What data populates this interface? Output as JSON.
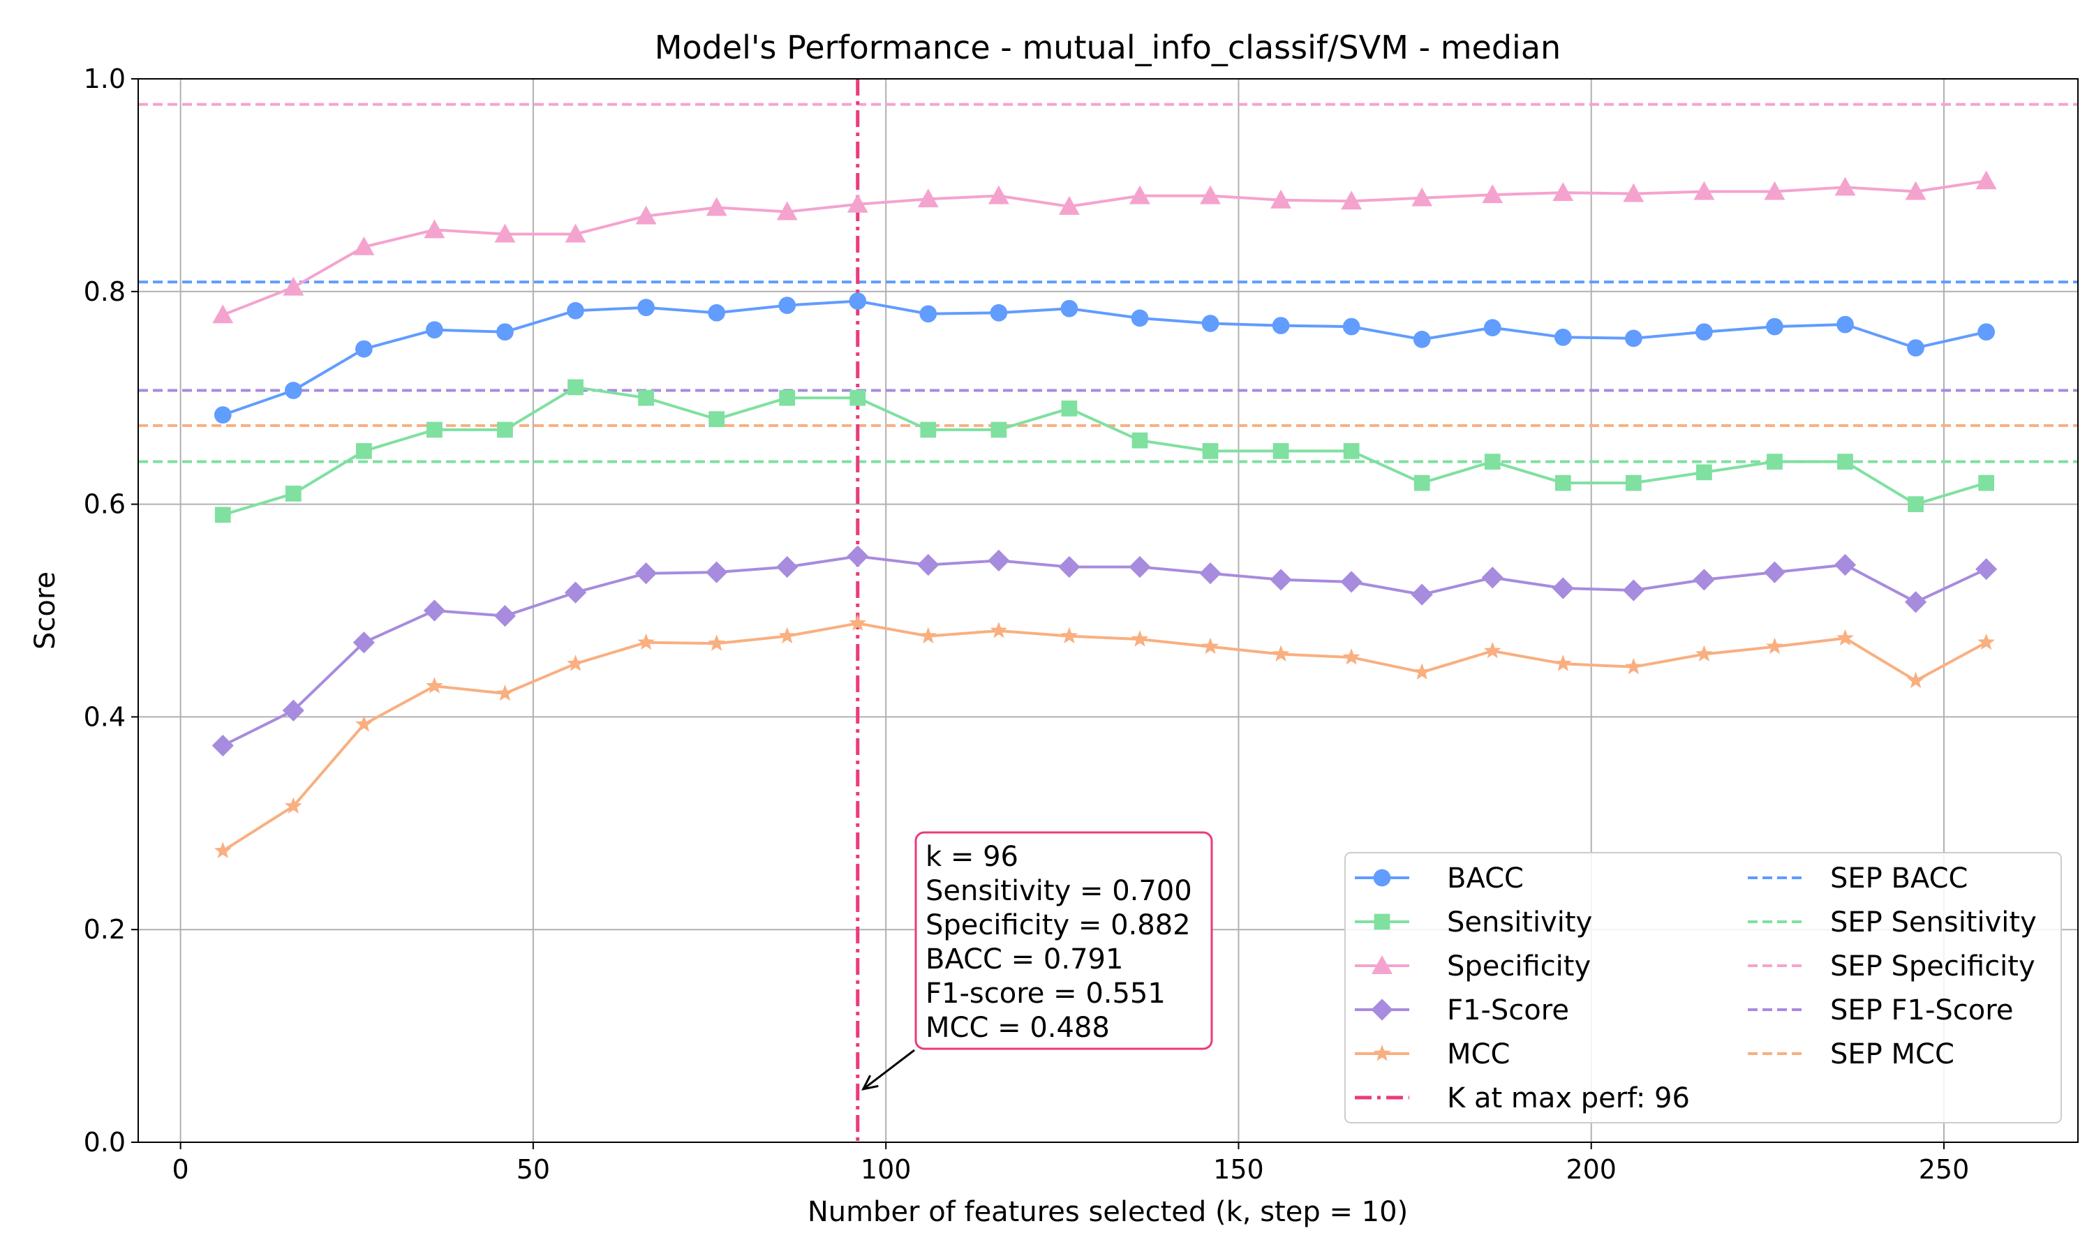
{
  "chart_data": {
    "type": "line",
    "title": "Model's Performance - mutual_info_classif/SVM - median",
    "xlabel": "Number of features selected (k, step = 10)",
    "ylabel": "Score",
    "xlim": [
      -6,
      269
    ],
    "ylim": [
      0.0,
      1.0
    ],
    "xticks": [
      0,
      50,
      100,
      150,
      200,
      250
    ],
    "yticks": [
      0.0,
      0.2,
      0.4,
      0.6,
      0.8,
      1.0
    ],
    "grid": true,
    "legend_position": "lower-right",
    "x": [
      6,
      16,
      26,
      36,
      46,
      56,
      66,
      76,
      86,
      96,
      106,
      116,
      126,
      136,
      146,
      156,
      166,
      176,
      186,
      196,
      206,
      216,
      226,
      236,
      246,
      256
    ],
    "series": [
      {
        "name": "BACC",
        "color": "#619CFF",
        "marker": "circle",
        "values": [
          0.684,
          0.707,
          0.746,
          0.764,
          0.762,
          0.782,
          0.785,
          0.78,
          0.787,
          0.791,
          0.779,
          0.78,
          0.784,
          0.775,
          0.77,
          0.768,
          0.767,
          0.755,
          0.766,
          0.757,
          0.756,
          0.762,
          0.767,
          0.769,
          0.747,
          0.762
        ]
      },
      {
        "name": "Sensitivity",
        "color": "#7FE0A0",
        "marker": "square",
        "values": [
          0.59,
          0.61,
          0.65,
          0.67,
          0.67,
          0.71,
          0.7,
          0.68,
          0.7,
          0.7,
          0.67,
          0.67,
          0.69,
          0.66,
          0.65,
          0.65,
          0.65,
          0.62,
          0.64,
          0.62,
          0.62,
          0.63,
          0.64,
          0.64,
          0.6,
          0.62
        ]
      },
      {
        "name": "Specificity",
        "color": "#F4A3CE",
        "marker": "triangle",
        "values": [
          0.778,
          0.804,
          0.842,
          0.858,
          0.854,
          0.854,
          0.871,
          0.879,
          0.875,
          0.882,
          0.887,
          0.89,
          0.88,
          0.89,
          0.89,
          0.886,
          0.885,
          0.888,
          0.891,
          0.893,
          0.892,
          0.894,
          0.894,
          0.898,
          0.894,
          0.904
        ]
      },
      {
        "name": "F1-Score",
        "color": "#A78BDE",
        "marker": "diamond",
        "values": [
          0.373,
          0.406,
          0.47,
          0.5,
          0.495,
          0.517,
          0.535,
          0.536,
          0.541,
          0.551,
          0.543,
          0.547,
          0.541,
          0.541,
          0.535,
          0.529,
          0.527,
          0.515,
          0.531,
          0.521,
          0.519,
          0.529,
          0.536,
          0.543,
          0.508,
          0.539
        ]
      },
      {
        "name": "MCC",
        "color": "#F9AF80",
        "marker": "star",
        "values": [
          0.274,
          0.316,
          0.393,
          0.429,
          0.422,
          0.45,
          0.47,
          0.469,
          0.476,
          0.488,
          0.476,
          0.481,
          0.476,
          0.473,
          0.466,
          0.459,
          0.456,
          0.442,
          0.462,
          0.45,
          0.447,
          0.459,
          0.466,
          0.474,
          0.434,
          0.47
        ]
      }
    ],
    "reference_lines": [
      {
        "name": "SEP BACC",
        "color": "#619CFF",
        "value": 0.809
      },
      {
        "name": "SEP Sensitivity",
        "color": "#7FE0A0",
        "value": 0.64
      },
      {
        "name": "SEP Specificity",
        "color": "#F4A3CE",
        "value": 0.976
      },
      {
        "name": "SEP F1-Score",
        "color": "#A78BDE",
        "value": 0.707
      },
      {
        "name": "SEP MCC",
        "color": "#F9AF80",
        "value": 0.674
      }
    ],
    "vertical_line": {
      "name": "K at max perf: 96",
      "color": "#EC3A7C",
      "x": 96
    },
    "annotation": {
      "lines": [
        "k = 96",
        "Sensitivity = 0.700",
        "Specificity = 0.882",
        "BACC = 0.791",
        "F1-score = 0.551",
        "MCC = 0.488"
      ],
      "border_color": "#EC3A7C",
      "arrow_target": [
        96,
        0.05
      ]
    }
  }
}
